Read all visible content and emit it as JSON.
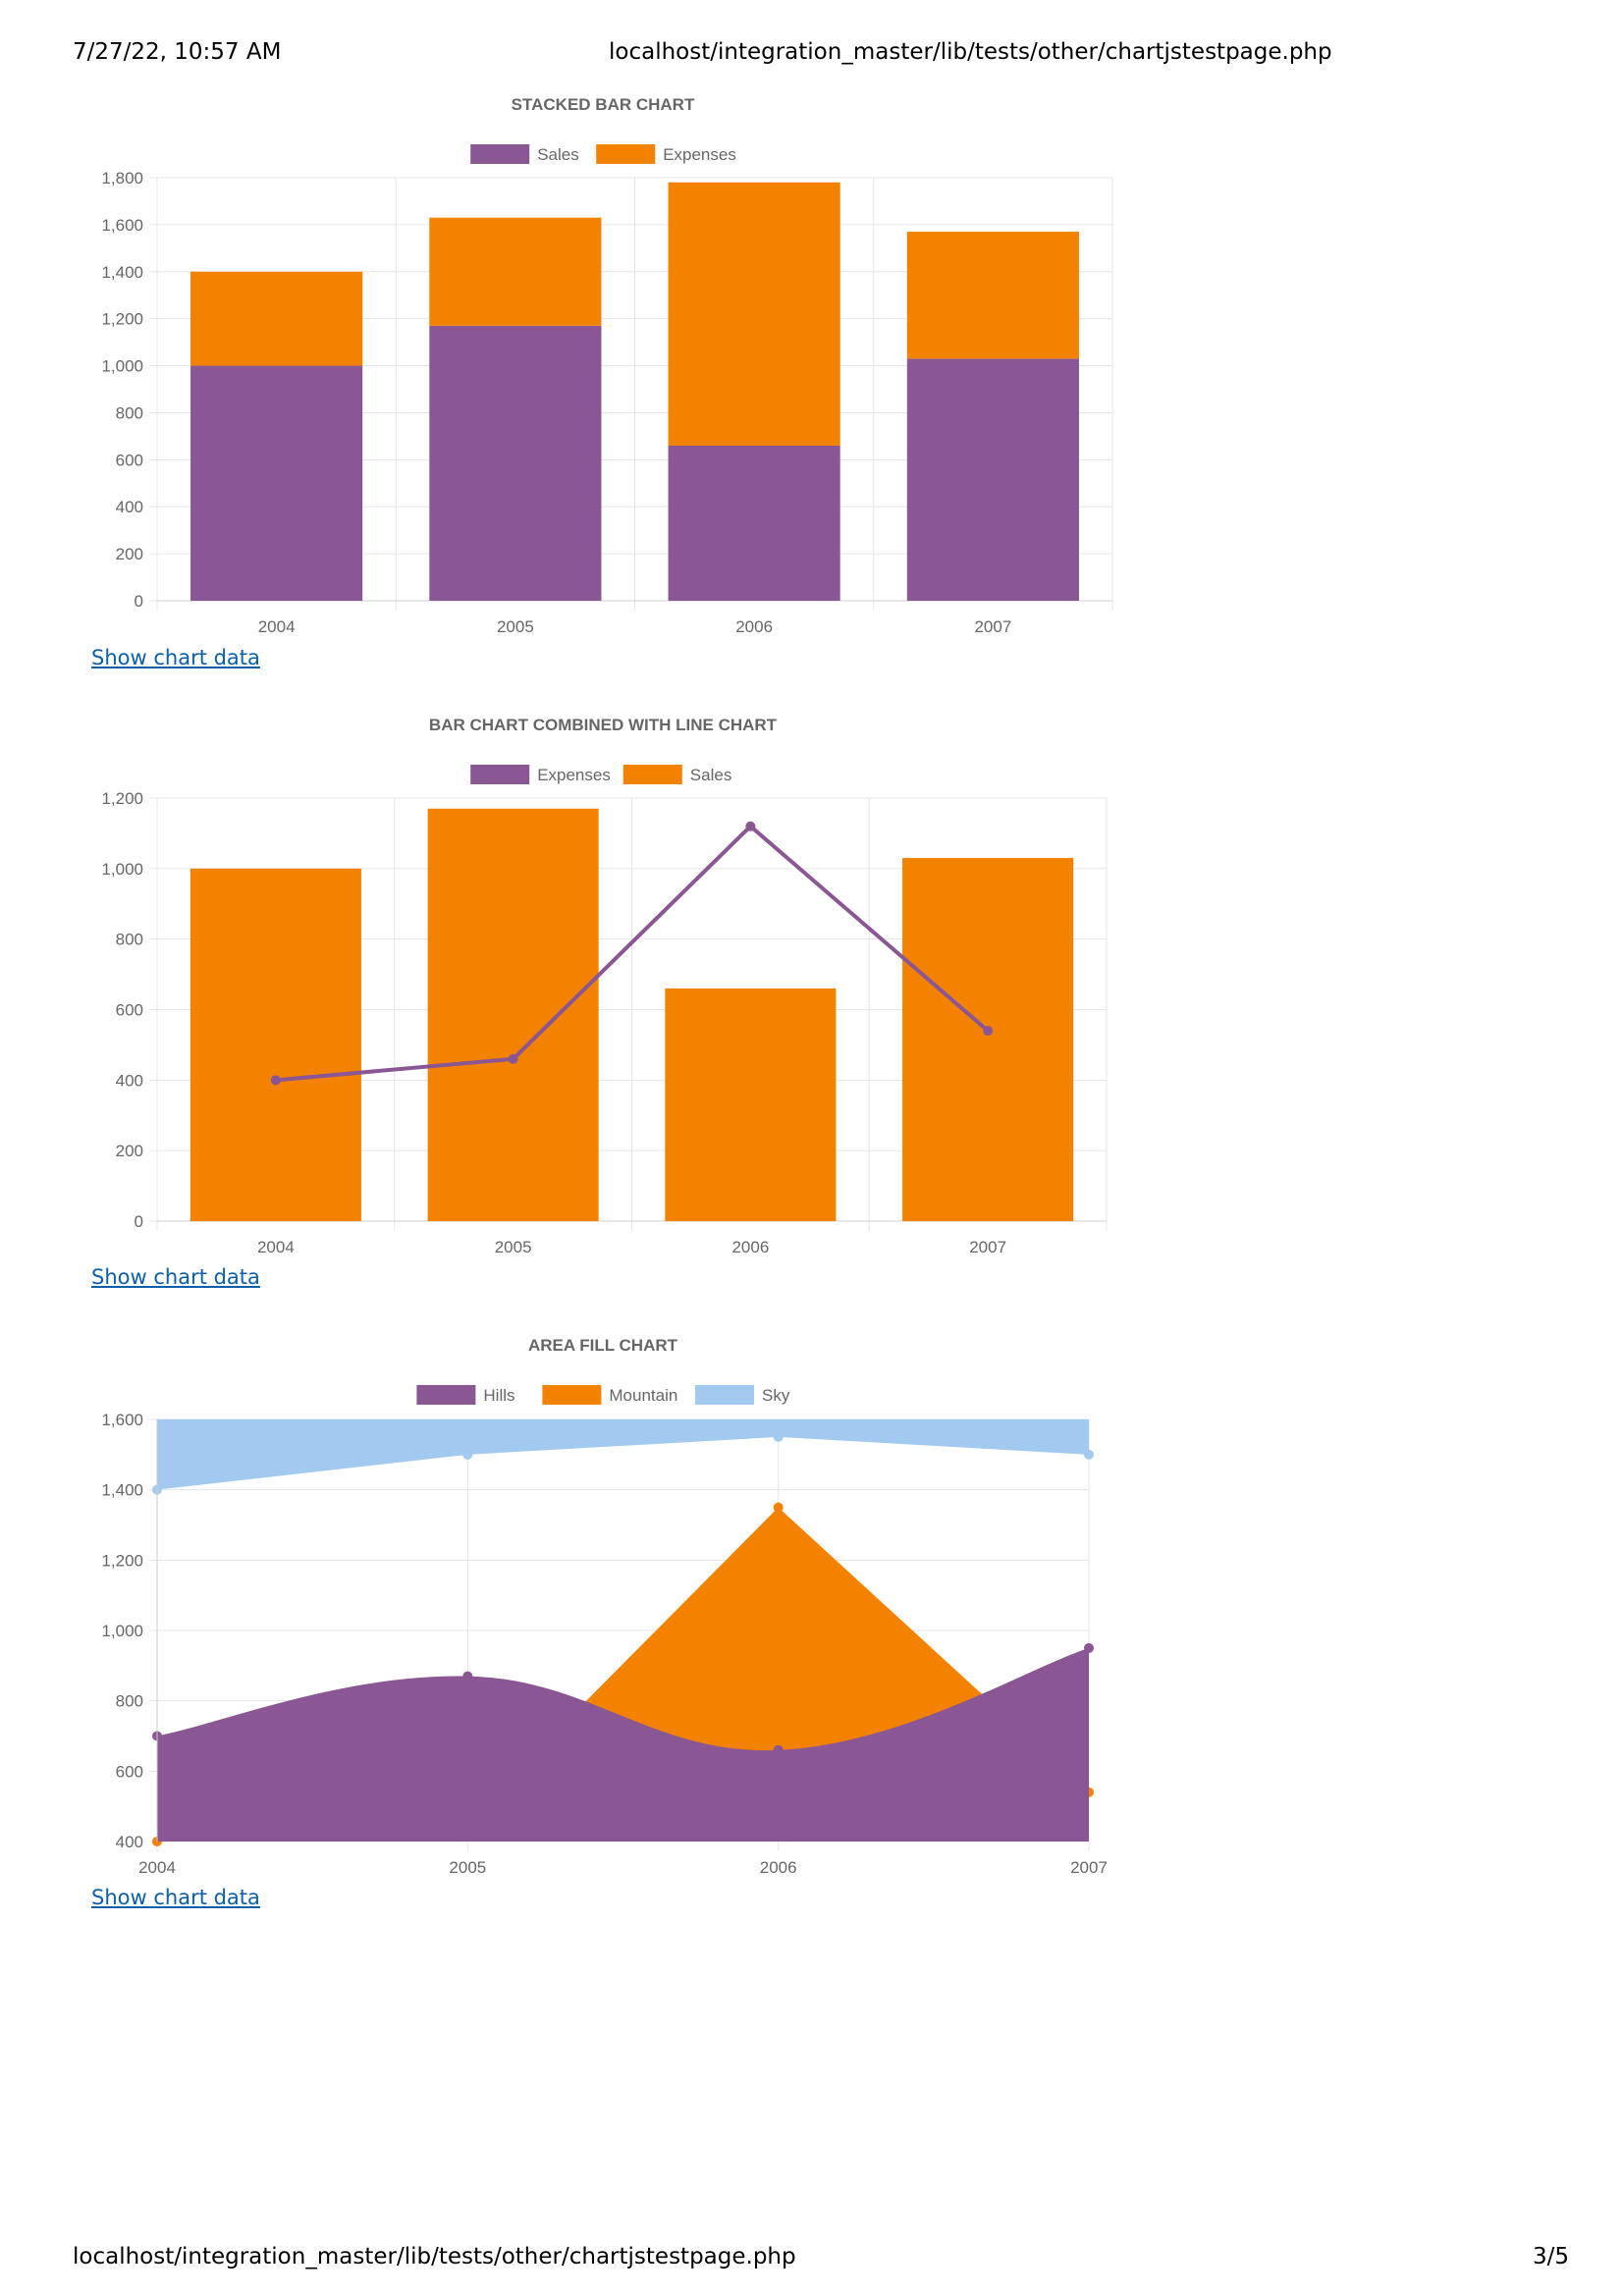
{
  "header": {
    "datetime": "7/27/22, 10:57 AM",
    "url": "localhost/integration_master/lib/tests/other/chartjstestpage.php"
  },
  "footer": {
    "url": "localhost/integration_master/lib/tests/other/chartjstestpage.php",
    "page": "3/5"
  },
  "links": {
    "show_chart_data_1": "Show chart data",
    "show_chart_data_2": "Show chart data",
    "show_chart_data_3": "Show chart data"
  },
  "colors": {
    "purple": "#8a5694",
    "orange": "#f38200",
    "sky": "#a2c9f0",
    "grid": "#e6e6e6",
    "text": "#666666"
  },
  "chart_data": [
    {
      "type": "bar",
      "stacked": true,
      "title": "STACKED BAR CHART",
      "categories": [
        "2004",
        "2005",
        "2006",
        "2007"
      ],
      "series": [
        {
          "name": "Sales",
          "color": "#8a5694",
          "values": [
            1000,
            1170,
            660,
            1030
          ]
        },
        {
          "name": "Expenses",
          "color": "#f38200",
          "values": [
            400,
            460,
            1120,
            540
          ]
        }
      ],
      "y_ticks": [
        "0",
        "200",
        "400",
        "600",
        "800",
        "1,000",
        "1,200",
        "1,400",
        "1,600",
        "1,800"
      ],
      "ylim": [
        0,
        1800
      ],
      "grid": true,
      "legend": "top"
    },
    {
      "type": "bar",
      "title": "BAR CHART COMBINED WITH LINE CHART",
      "categories": [
        "2004",
        "2005",
        "2006",
        "2007"
      ],
      "series": [
        {
          "name": "Expenses",
          "type": "line",
          "color": "#8a5694",
          "values": [
            400,
            460,
            1120,
            540
          ]
        },
        {
          "name": "Sales",
          "type": "bar",
          "color": "#f38200",
          "values": [
            1000,
            1170,
            660,
            1030
          ]
        }
      ],
      "y_ticks": [
        "0",
        "200",
        "400",
        "600",
        "800",
        "1,000",
        "1,200"
      ],
      "ylim": [
        0,
        1200
      ],
      "grid": true,
      "legend": "top"
    },
    {
      "type": "area",
      "title": "AREA FILL CHART",
      "categories": [
        "2004",
        "2005",
        "2006",
        "2007"
      ],
      "series": [
        {
          "name": "Hills",
          "color": "#8a5694",
          "values": [
            700,
            870,
            660,
            950
          ]
        },
        {
          "name": "Mountain",
          "color": "#f38200",
          "values": [
            400,
            460,
            1350,
            540
          ]
        },
        {
          "name": "Sky",
          "color": "#a2c9f0",
          "values": [
            1400,
            1500,
            1550,
            1500
          ]
        }
      ],
      "y_ticks": [
        "400",
        "600",
        "800",
        "1,000",
        "1,200",
        "1,400",
        "1,600"
      ],
      "ylim": [
        400,
        1600
      ],
      "grid": true,
      "legend": "top"
    }
  ]
}
